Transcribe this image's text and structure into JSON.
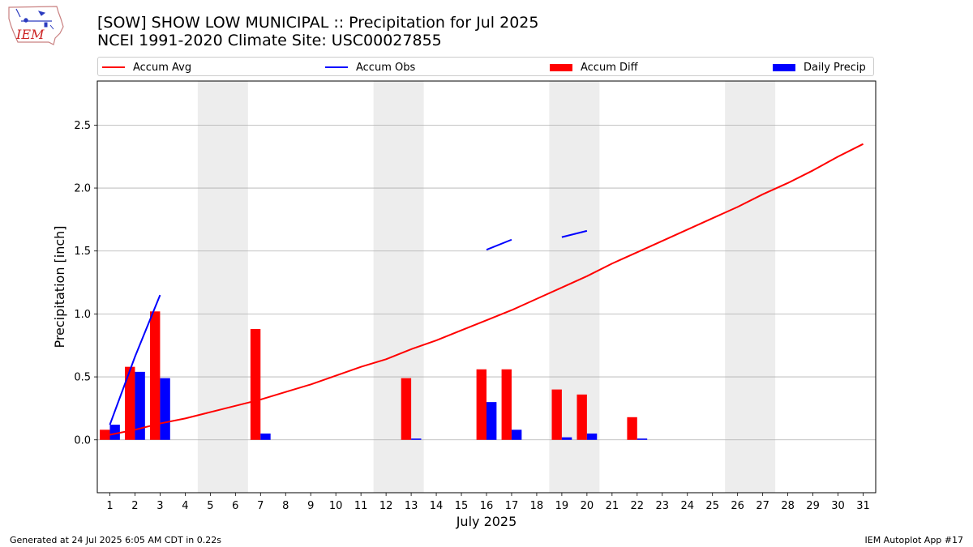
{
  "header": {
    "logo_text": "IEM",
    "title_line1": "[SOW] SHOW LOW MUNICIPAL :: Precipitation for Jul 2025",
    "title_line2": "NCEI 1991-2020 Climate Site: USC00027855"
  },
  "footer": {
    "generated": "Generated at 24 Jul 2025 6:05 AM CDT in 0.22s",
    "app": "IEM Autoplot App #17"
  },
  "chart_data": {
    "type": "bar",
    "xlabel": "July 2025",
    "ylabel": "Precipitation [inch]",
    "xlim": [
      0.5,
      31.5
    ],
    "ylim": [
      -0.42,
      2.85
    ],
    "yticks": [
      0.0,
      0.5,
      1.0,
      1.5,
      2.0,
      2.5
    ],
    "ytick_labels": [
      "0.0",
      "0.5",
      "1.0",
      "1.5",
      "2.0",
      "2.5"
    ],
    "x": [
      1,
      2,
      3,
      4,
      5,
      6,
      7,
      8,
      9,
      10,
      11,
      12,
      13,
      14,
      15,
      16,
      17,
      18,
      19,
      20,
      21,
      22,
      23,
      24,
      25,
      26,
      27,
      28,
      29,
      30,
      31
    ],
    "x_tick_labels": [
      "1",
      "2",
      "3",
      "4",
      "5",
      "6",
      "7",
      "8",
      "9",
      "10",
      "11",
      "12",
      "13",
      "14",
      "15",
      "16",
      "17",
      "18",
      "19",
      "20",
      "21",
      "22",
      "23",
      "24",
      "25",
      "26",
      "27",
      "28",
      "29",
      "30",
      "31"
    ],
    "grid": "horizontal",
    "legend_position": "top",
    "weekend_shading": [
      [
        4.5,
        6.5
      ],
      [
        11.5,
        13.5
      ],
      [
        18.5,
        20.5
      ],
      [
        25.5,
        27.5
      ]
    ],
    "series": [
      {
        "name": "Accum Avg",
        "type": "line",
        "color": "#ff0000",
        "values": [
          0.04,
          0.08,
          0.13,
          0.17,
          0.22,
          0.27,
          0.32,
          0.38,
          0.44,
          0.51,
          0.58,
          0.64,
          0.72,
          0.79,
          0.87,
          0.95,
          1.03,
          1.12,
          1.21,
          1.3,
          1.4,
          1.49,
          1.58,
          1.67,
          1.76,
          1.85,
          1.95,
          2.04,
          2.14,
          2.25,
          2.35
        ]
      },
      {
        "name": "Accum Obs",
        "type": "line",
        "color": "#0000ff",
        "values": [
          0.12,
          0.66,
          1.15,
          null,
          null,
          null,
          null,
          null,
          null,
          null,
          null,
          null,
          null,
          null,
          null,
          1.51,
          1.59,
          null,
          1.61,
          1.66,
          null,
          null,
          null,
          null,
          null,
          null,
          null,
          null,
          null,
          null,
          null
        ]
      },
      {
        "name": "Accum Diff",
        "type": "bar",
        "color": "#ff0000",
        "values": [
          0.08,
          0.58,
          1.02,
          null,
          null,
          null,
          0.88,
          null,
          null,
          null,
          null,
          null,
          0.49,
          null,
          null,
          0.56,
          0.56,
          null,
          0.4,
          0.36,
          null,
          0.18,
          null,
          null,
          null,
          null,
          null,
          null,
          null,
          null,
          null
        ]
      },
      {
        "name": "Daily Precip",
        "type": "bar",
        "color": "#0000ff",
        "values": [
          0.12,
          0.54,
          0.49,
          0,
          0,
          0,
          0.05,
          0,
          0,
          0,
          0,
          0,
          0.01,
          0,
          0,
          0.3,
          0.08,
          0,
          0.02,
          0.05,
          0,
          0.01,
          0,
          0,
          0,
          0,
          0,
          0,
          0,
          0,
          0
        ]
      }
    ]
  }
}
